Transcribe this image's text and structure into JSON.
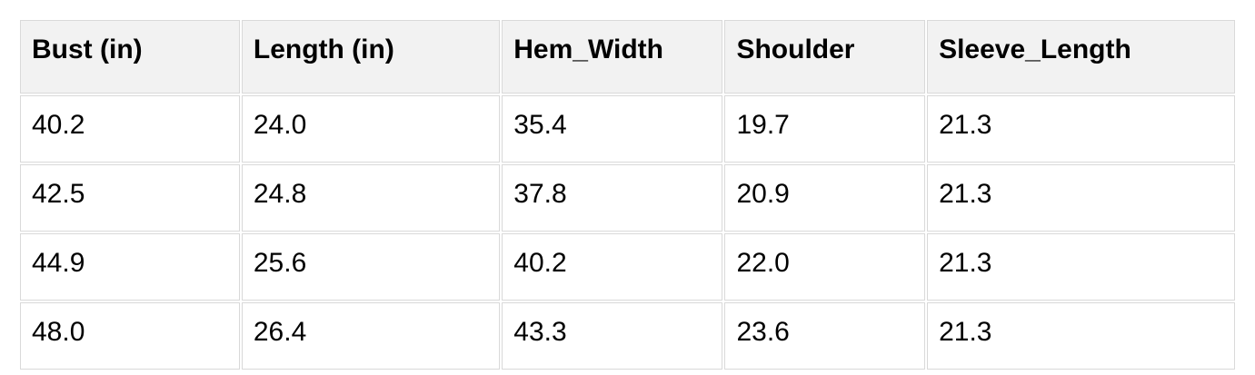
{
  "table": {
    "columns": [
      "Bust (in)",
      "Length (in)",
      "Hem_Width",
      "Shoulder",
      "Sleeve_Length"
    ],
    "rows": [
      [
        "40.2",
        "24.0",
        "35.4",
        "19.7",
        "21.3"
      ],
      [
        "42.5",
        "24.8",
        "37.8",
        "20.9",
        "21.3"
      ],
      [
        "44.9",
        "25.6",
        "40.2",
        "22.0",
        "21.3"
      ],
      [
        "48.0",
        "26.4",
        "43.3",
        "23.6",
        "21.3"
      ]
    ]
  },
  "colors": {
    "background": "#ffffff",
    "header_bg": "#f2f2f2",
    "border": "#d9d9d9",
    "text": "#000000"
  }
}
